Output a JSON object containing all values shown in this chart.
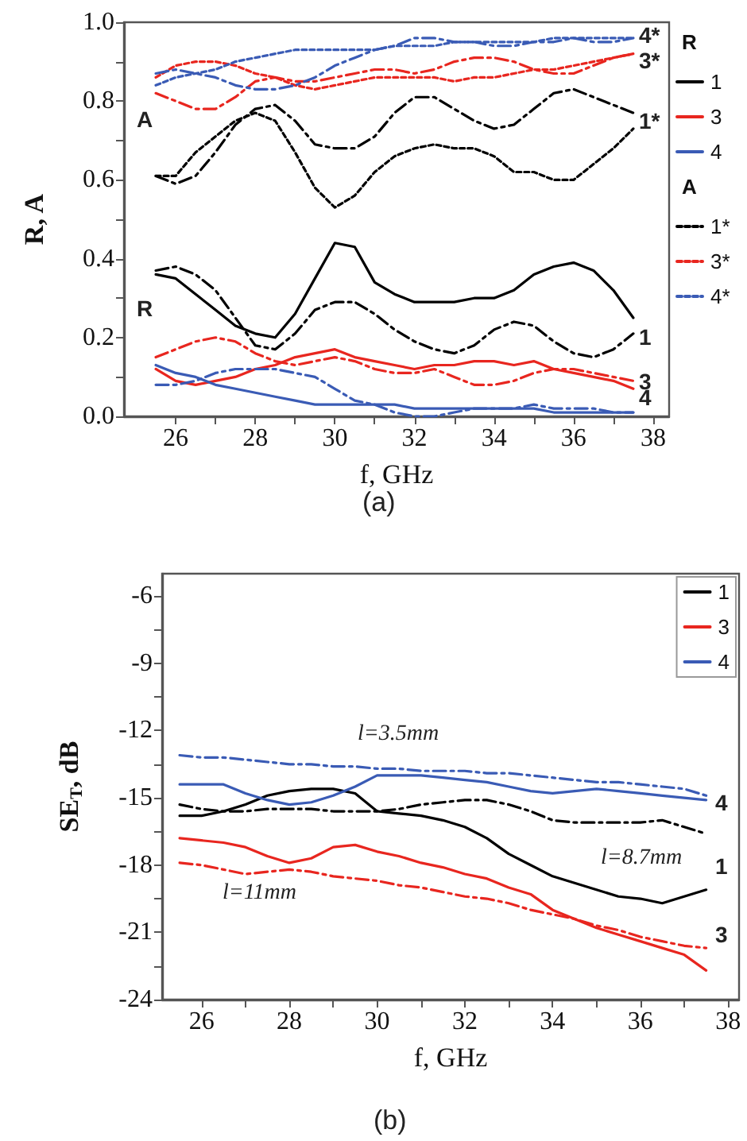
{
  "chart_data": [
    {
      "type": "line",
      "xlabel": "f, GHz",
      "ylabel": "R, A",
      "legend": "right",
      "legend_title": [
        "R",
        "A"
      ],
      "marker": "none",
      "grid": false,
      "xlim": [
        24.7,
        38.4
      ],
      "ylim": [
        0,
        1
      ],
      "xticks": [
        26,
        {
          "value": 27,
          "label": null
        },
        28,
        {
          "value": 29,
          "label": null
        },
        30,
        {
          "value": 31,
          "label": null
        },
        32,
        {
          "value": 33,
          "label": null
        },
        34,
        {
          "value": 35,
          "label": null
        },
        36,
        {
          "value": 37,
          "label": null
        },
        38
      ],
      "yticks": [
        {
          "value": 0,
          "label": "0.0"
        },
        {
          "value": 0.1,
          "label": null
        },
        {
          "value": 0.2,
          "label": "0.2"
        },
        {
          "value": 0.3,
          "label": null
        },
        {
          "value": 0.4,
          "label": "0.4"
        },
        {
          "value": 0.5,
          "label": null
        },
        {
          "value": 0.6,
          "label": "0.6"
        },
        {
          "value": 0.7,
          "label": null
        },
        {
          "value": 0.8,
          "label": "0.8"
        },
        {
          "value": 0.9,
          "label": null
        },
        {
          "value": 1,
          "label": "1.0"
        }
      ],
      "x": [
        25.5,
        26,
        26.5,
        27,
        27.5,
        28,
        28.5,
        29,
        29.5,
        30,
        30.5,
        31,
        31.5,
        32,
        32.5,
        33,
        33.5,
        34,
        34.5,
        35,
        35.5,
        36,
        36.5,
        37,
        37.5
      ],
      "series": [
        {
          "name": "1",
          "color": "#000000",
          "line_style": "solid",
          "values": [
            0.36,
            0.35,
            0.31,
            0.27,
            0.23,
            0.21,
            0.2,
            0.26,
            0.35,
            0.44,
            0.43,
            0.34,
            0.31,
            0.29,
            0.29,
            0.29,
            0.3,
            0.3,
            0.32,
            0.36,
            0.38,
            0.39,
            0.37,
            0.32,
            0.25
          ]
        },
        {
          "name": "3",
          "color": "#e8261f",
          "line_style": "solid",
          "values": [
            0.12,
            0.09,
            0.08,
            0.09,
            0.1,
            0.12,
            0.13,
            0.15,
            0.16,
            0.17,
            0.15,
            0.14,
            0.13,
            0.12,
            0.13,
            0.13,
            0.14,
            0.14,
            0.13,
            0.14,
            0.12,
            0.11,
            0.1,
            0.09,
            0.07
          ]
        },
        {
          "name": "4",
          "color": "#3a5bb5",
          "line_style": "solid",
          "values": [
            0.13,
            0.11,
            0.1,
            0.08,
            0.07,
            0.06,
            0.05,
            0.04,
            0.03,
            0.03,
            0.03,
            0.03,
            0.03,
            0.02,
            0.02,
            0.02,
            0.02,
            0.02,
            0.02,
            0.02,
            0.01,
            0.01,
            0.01,
            0.01,
            0.01
          ]
        },
        {
          "name": "1*",
          "color": "#000000",
          "line_style": "dashed",
          "values": [
            0.61,
            0.61,
            0.67,
            0.71,
            0.75,
            0.77,
            0.75,
            0.67,
            0.58,
            0.53,
            0.56,
            0.62,
            0.66,
            0.68,
            0.69,
            0.68,
            0.68,
            0.66,
            0.62,
            0.62,
            0.6,
            0.6,
            0.64,
            0.68,
            0.73
          ]
        },
        {
          "name": "3*",
          "color": "#e8261f",
          "line_style": "dashed",
          "values": [
            0.86,
            0.89,
            0.9,
            0.9,
            0.89,
            0.87,
            0.86,
            0.84,
            0.83,
            0.84,
            0.85,
            0.86,
            0.86,
            0.86,
            0.86,
            0.85,
            0.86,
            0.86,
            0.87,
            0.88,
            0.88,
            0.89,
            0.9,
            0.91,
            0.92
          ]
        },
        {
          "name": "4*",
          "color": "#3a5bb5",
          "line_style": "dashed",
          "values": [
            0.84,
            0.86,
            0.87,
            0.88,
            0.9,
            0.91,
            0.92,
            0.93,
            0.93,
            0.93,
            0.93,
            0.93,
            0.94,
            0.94,
            0.94,
            0.95,
            0.95,
            0.95,
            0.95,
            0.95,
            0.96,
            0.96,
            0.96,
            0.96,
            0.96
          ]
        },
        {
          "color": "#000000",
          "line_style": "dashdot",
          "values": [
            0.37,
            0.38,
            0.36,
            0.32,
            0.25,
            0.18,
            0.17,
            0.21,
            0.27,
            0.29,
            0.29,
            0.26,
            0.22,
            0.19,
            0.17,
            0.16,
            0.18,
            0.22,
            0.24,
            0.23,
            0.19,
            0.16,
            0.15,
            0.17,
            0.21
          ]
        },
        {
          "color": "#e8261f",
          "line_style": "dashdot",
          "values": [
            0.15,
            0.17,
            0.19,
            0.2,
            0.19,
            0.16,
            0.14,
            0.13,
            0.14,
            0.15,
            0.14,
            0.12,
            0.11,
            0.11,
            0.12,
            0.1,
            0.08,
            0.08,
            0.09,
            0.11,
            0.12,
            0.12,
            0.11,
            0.1,
            0.09
          ]
        },
        {
          "color": "#3a5bb5",
          "line_style": "dashdot",
          "values": [
            0.08,
            0.08,
            0.09,
            0.11,
            0.12,
            0.12,
            0.12,
            0.11,
            0.1,
            0.07,
            0.04,
            0.03,
            0.01,
            0.0,
            0.0,
            0.01,
            0.02,
            0.02,
            0.02,
            0.03,
            0.02,
            0.02,
            0.02,
            0.01,
            0.01
          ]
        },
        {
          "color": "#000000",
          "line_style": "dashdot",
          "values": [
            0.61,
            0.59,
            0.61,
            0.67,
            0.74,
            0.78,
            0.79,
            0.75,
            0.69,
            0.68,
            0.68,
            0.71,
            0.77,
            0.81,
            0.81,
            0.78,
            0.75,
            0.73,
            0.74,
            0.78,
            0.82,
            0.83,
            0.81,
            0.79,
            0.77
          ]
        },
        {
          "color": "#e8261f",
          "line_style": "dashdot",
          "values": [
            0.82,
            0.8,
            0.78,
            0.78,
            0.81,
            0.85,
            0.86,
            0.85,
            0.85,
            0.86,
            0.87,
            0.88,
            0.88,
            0.87,
            0.88,
            0.9,
            0.91,
            0.91,
            0.9,
            0.88,
            0.87,
            0.87,
            0.89,
            0.91,
            0.92
          ]
        },
        {
          "color": "#3a5bb5",
          "line_style": "dashdot",
          "values": [
            0.87,
            0.88,
            0.87,
            0.86,
            0.84,
            0.83,
            0.83,
            0.84,
            0.86,
            0.89,
            0.91,
            0.93,
            0.94,
            0.96,
            0.96,
            0.95,
            0.95,
            0.94,
            0.94,
            0.95,
            0.95,
            0.96,
            0.95,
            0.95,
            0.96
          ]
        }
      ],
      "annotations": [
        "A",
        "R",
        "4*",
        "3*",
        "1*",
        "1",
        "3",
        "4",
        "(a)"
      ]
    },
    {
      "type": "line",
      "xlabel": "f, GHz",
      "ylabel": "SE$_{T}$, dB",
      "legend": "top right",
      "marker": "none",
      "grid": false,
      "xlim": [
        25.1,
        38.25
      ],
      "ylim": [
        -24,
        -5
      ],
      "xticks": [
        26,
        {
          "value": 27,
          "label": null
        },
        28,
        {
          "value": 29,
          "label": null
        },
        30,
        {
          "value": 31,
          "label": null
        },
        32,
        {
          "value": 33,
          "label": null
        },
        34,
        {
          "value": 35,
          "label": null
        },
        36,
        {
          "value": 37,
          "label": null
        },
        38
      ],
      "yticks": [
        -24,
        {
          "value": -22.5,
          "label": null
        },
        -21,
        {
          "value": -19.5,
          "label": null
        },
        -18,
        {
          "value": -16.5,
          "label": null
        },
        -15,
        {
          "value": -13.5,
          "label": null
        },
        -12,
        {
          "value": -10.5,
          "label": null
        },
        -9,
        {
          "value": -7.5,
          "label": null
        },
        -6
      ],
      "x": [
        25.5,
        26,
        26.5,
        27,
        27.5,
        28,
        28.5,
        29,
        29.5,
        30,
        30.5,
        31,
        31.5,
        32,
        32.5,
        33,
        33.5,
        34,
        34.5,
        35,
        35.5,
        36,
        36.5,
        37,
        37.5
      ],
      "series": [
        {
          "name": "1",
          "color": "#000000",
          "line_style": "solid",
          "values": [
            -15.8,
            -15.8,
            -15.6,
            -15.3,
            -14.9,
            -14.7,
            -14.6,
            -14.6,
            -14.8,
            -15.6,
            -15.7,
            -15.8,
            -16.0,
            -16.3,
            -16.8,
            -17.5,
            -18.0,
            -18.5,
            -18.8,
            -19.1,
            -19.4,
            -19.5,
            -19.7,
            -19.4,
            -19.1
          ]
        },
        {
          "name": "3",
          "color": "#e8261f",
          "line_style": "solid",
          "values": [
            -16.8,
            -16.9,
            -17.0,
            -17.2,
            -17.6,
            -17.9,
            -17.7,
            -17.2,
            -17.1,
            -17.4,
            -17.6,
            -17.9,
            -18.1,
            -18.4,
            -18.6,
            -19.0,
            -19.3,
            -20.0,
            -20.4,
            -20.8,
            -21.1,
            -21.4,
            -21.7,
            -22.0,
            -22.7
          ]
        },
        {
          "name": "4",
          "color": "#3a5bb5",
          "line_style": "solid",
          "values": [
            -14.4,
            -14.4,
            -14.4,
            -14.8,
            -15.1,
            -15.3,
            -15.2,
            -14.9,
            -14.5,
            -14.0,
            -14.0,
            -14.0,
            -14.1,
            -14.2,
            -14.3,
            -14.5,
            -14.7,
            -14.8,
            -14.7,
            -14.6,
            -14.7,
            -14.8,
            -14.9,
            -15.0,
            -15.1
          ]
        },
        {
          "color": "#000000",
          "line_style": "dashdot",
          "values": [
            -15.3,
            -15.5,
            -15.6,
            -15.6,
            -15.5,
            -15.5,
            -15.5,
            -15.6,
            -15.6,
            -15.6,
            -15.5,
            -15.3,
            -15.2,
            -15.1,
            -15.1,
            -15.3,
            -15.6,
            -16.0,
            -16.1,
            -16.1,
            -16.1,
            -16.1,
            -16.0,
            -16.3,
            -16.6
          ]
        },
        {
          "color": "#e8261f",
          "line_style": "dashdot",
          "values": [
            -17.9,
            -18.0,
            -18.2,
            -18.4,
            -18.3,
            -18.2,
            -18.3,
            -18.5,
            -18.6,
            -18.7,
            -18.9,
            -19.0,
            -19.2,
            -19.4,
            -19.5,
            -19.7,
            -20.0,
            -20.2,
            -20.4,
            -20.7,
            -20.9,
            -21.2,
            -21.4,
            -21.6,
            -21.7
          ]
        },
        {
          "color": "#3a5bb5",
          "line_style": "dashdot",
          "values": [
            -13.1,
            -13.2,
            -13.2,
            -13.3,
            -13.4,
            -13.5,
            -13.5,
            -13.6,
            -13.6,
            -13.7,
            -13.7,
            -13.8,
            -13.8,
            -13.8,
            -13.9,
            -13.9,
            -14.0,
            -14.1,
            -14.2,
            -14.3,
            -14.3,
            -14.4,
            -14.5,
            -14.6,
            -14.9
          ]
        }
      ],
      "annotations": [
        "l=3.5mm",
        "l=8.7mm",
        "l=11mm",
        "4",
        "1",
        "3",
        "(b)"
      ]
    }
  ]
}
